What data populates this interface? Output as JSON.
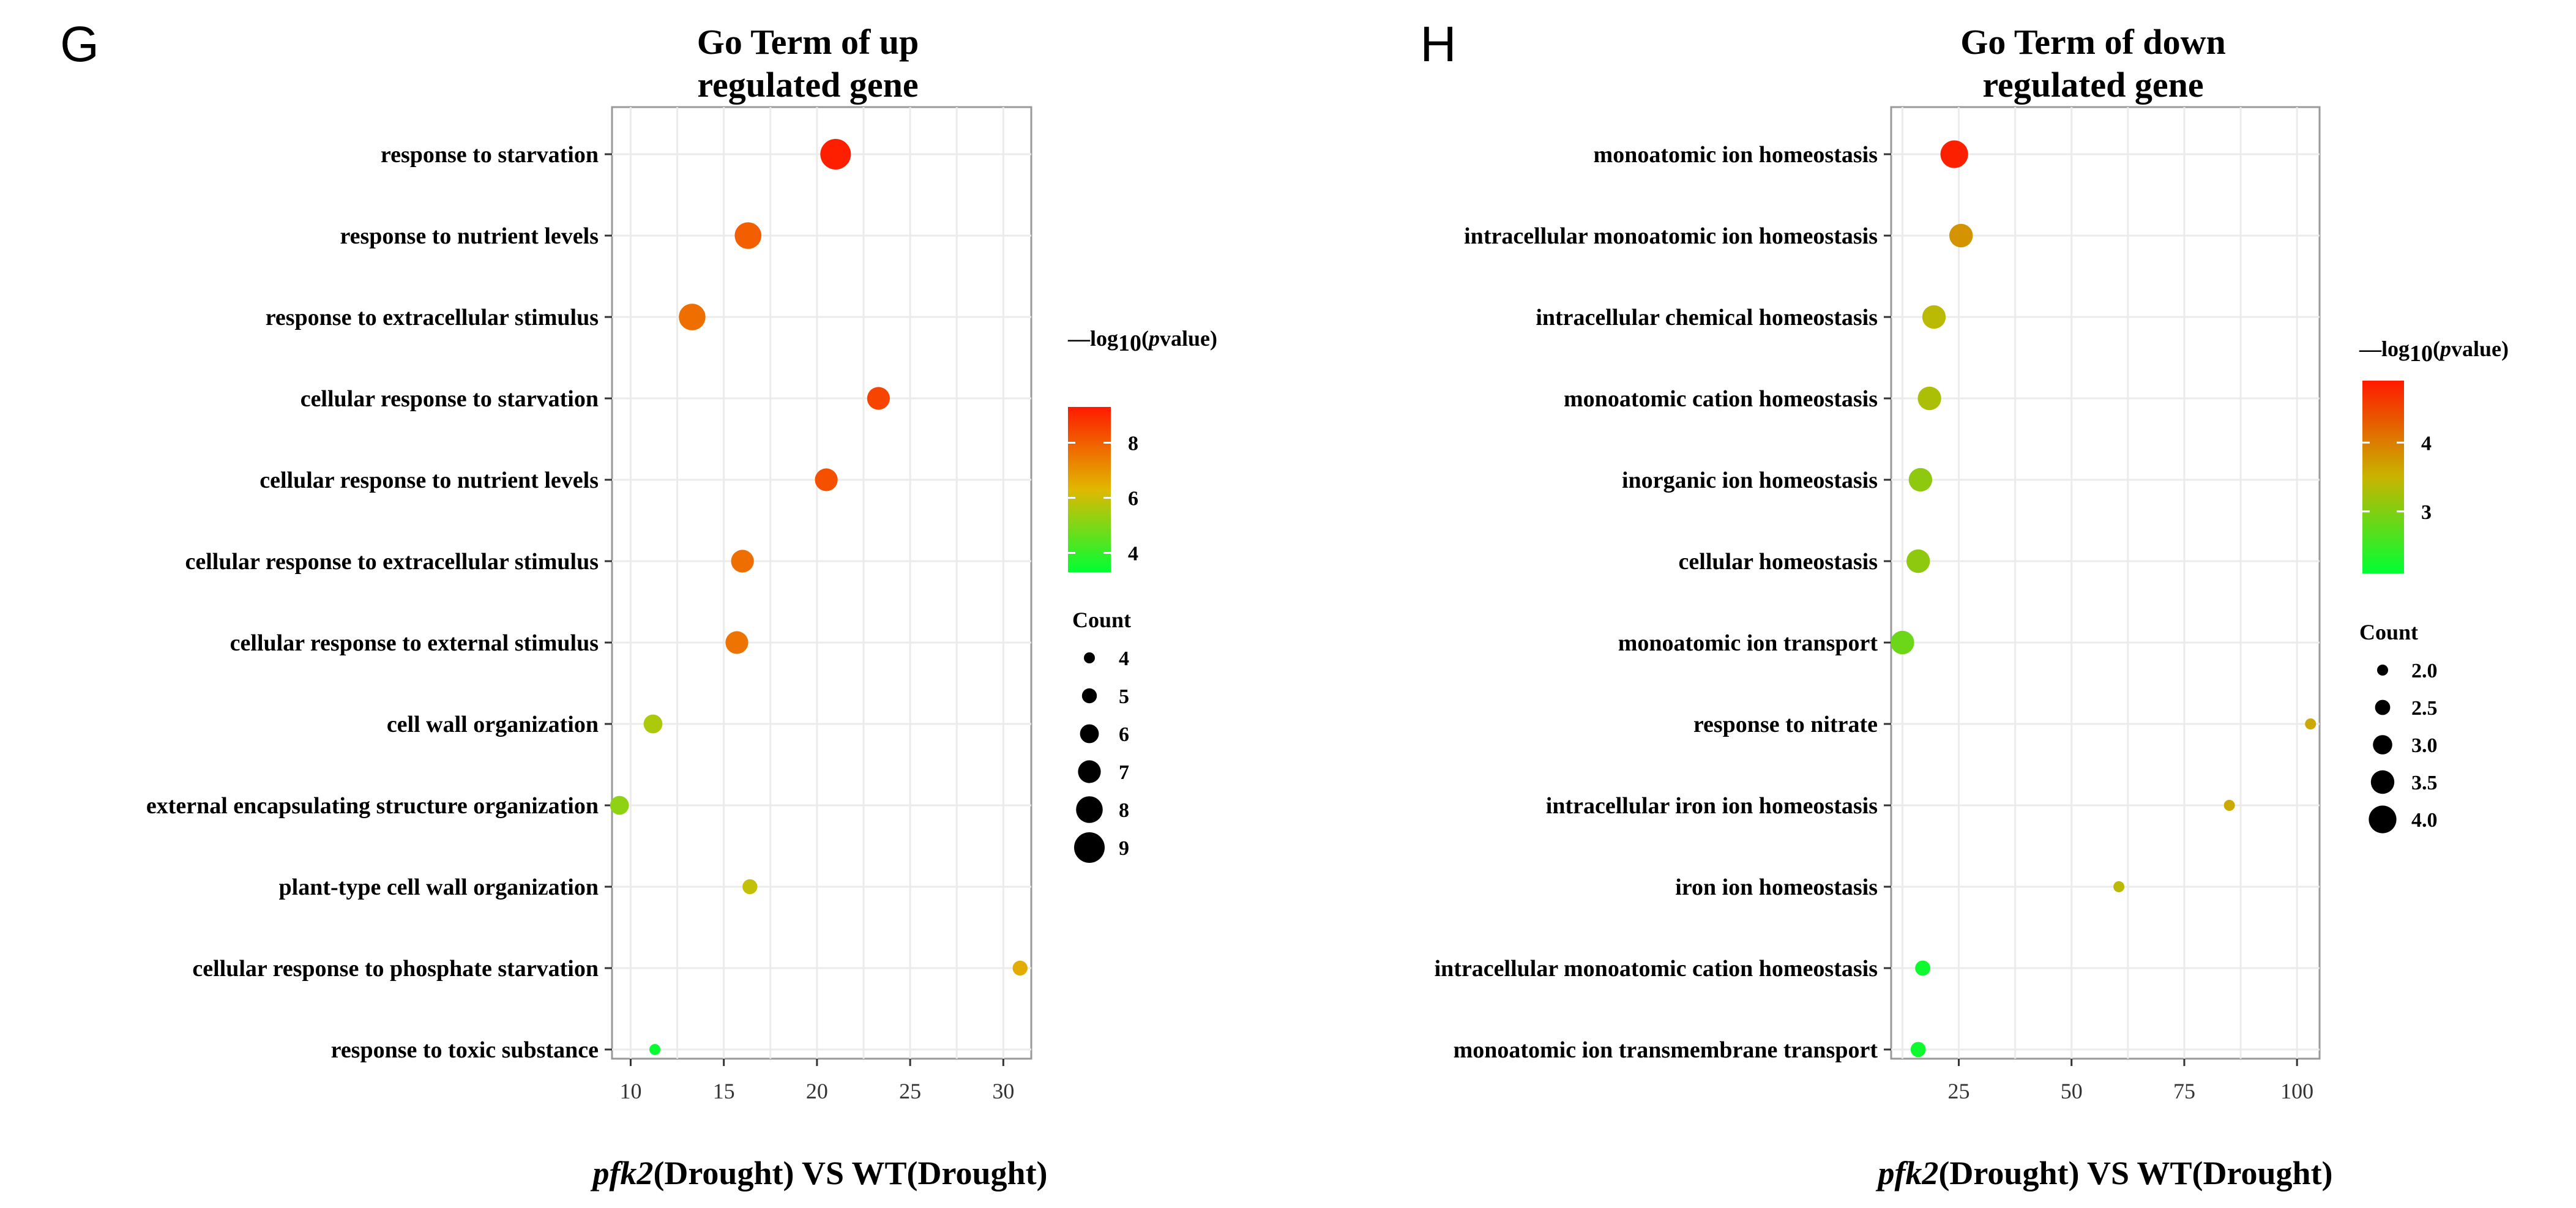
{
  "chart_data": [
    {
      "panel_label": "G",
      "type": "scatter",
      "title_lines": [
        "Go Term of up",
        "regulated gene"
      ],
      "xlabel_italic": "pfk2",
      "xlabel_rest": "(Drought) VS WT(Drought)",
      "ylabel": "",
      "xlim": [
        9,
        31.5
      ],
      "xticks": [
        10,
        15,
        20,
        25,
        30
      ],
      "grid": true,
      "color_scale": {
        "title_prefix": "—log",
        "title_sub": "10",
        "title_open": "(",
        "title_italic": "p",
        "title_rest": "value)",
        "min": 3.3,
        "max": 9.3,
        "ticks": [
          4,
          6,
          8
        ],
        "low_color": "#00ff33",
        "mid_color": "#e0b800",
        "high_color": "#ff1a00"
      },
      "size_scale": {
        "title": "Count",
        "values": [
          4,
          5,
          6,
          7,
          8,
          9
        ]
      },
      "terms": [
        {
          "label": "response to starvation",
          "x": 21.0,
          "count": 9,
          "p": 9.2
        },
        {
          "label": "response to nutrient levels",
          "x": 16.3,
          "count": 8,
          "p": 8.0
        },
        {
          "label": "response to extracellular stimulus",
          "x": 13.3,
          "count": 8,
          "p": 7.7
        },
        {
          "label": "cellular response to starvation",
          "x": 23.3,
          "count": 7,
          "p": 8.5
        },
        {
          "label": "cellular response to nutrient levels",
          "x": 20.5,
          "count": 7,
          "p": 8.3
        },
        {
          "label": "cellular response to extracellular stimulus",
          "x": 16.0,
          "count": 7,
          "p": 7.7
        },
        {
          "label": "cellular response to external stimulus",
          "x": 15.7,
          "count": 7,
          "p": 7.6
        },
        {
          "label": "cell wall organization",
          "x": 11.2,
          "count": 6,
          "p": 5.6
        },
        {
          "label": "external encapsulating structure organization",
          "x": 9.4,
          "count": 6,
          "p": 5.2
        },
        {
          "label": "plant-type cell wall organization",
          "x": 16.4,
          "count": 5,
          "p": 5.9
        },
        {
          "label": "cellular response to phosphate starvation",
          "x": 30.9,
          "count": 5,
          "p": 6.5
        },
        {
          "label": "response to toxic substance",
          "x": 11.3,
          "count": 4,
          "p": 3.4
        }
      ]
    },
    {
      "panel_label": "H",
      "type": "scatter",
      "title_lines": [
        "Go Term of down",
        "regulated gene"
      ],
      "xlabel_italic": "pfk2",
      "xlabel_rest": "(Drought) VS WT(Drought)",
      "ylabel": "",
      "xlim": [
        10,
        105
      ],
      "xticks": [
        25,
        50,
        75,
        100
      ],
      "grid": true,
      "color_scale": {
        "title_prefix": "—log",
        "title_sub": "10",
        "title_open": "(",
        "title_italic": "p",
        "title_rest": "value)",
        "min": 2.1,
        "max": 4.9,
        "ticks": [
          3,
          4
        ],
        "low_color": "#00ff33",
        "mid_color": "#c8b400",
        "high_color": "#ff1a00"
      },
      "size_scale": {
        "title": "Count",
        "values": [
          "2.0",
          "2.5",
          "3.0",
          "3.5",
          "4.0"
        ]
      },
      "terms": [
        {
          "label": "monoatomic ion homeostasis",
          "x": 24.0,
          "count": 4.0,
          "p": 4.85
        },
        {
          "label": "intracellular monoatomic ion homeostasis",
          "x": 25.5,
          "count": 3.5,
          "p": 3.8
        },
        {
          "label": "intracellular chemical homeostasis",
          "x": 19.5,
          "count": 3.5,
          "p": 3.4
        },
        {
          "label": "monoatomic cation homeostasis",
          "x": 18.5,
          "count": 3.5,
          "p": 3.3
        },
        {
          "label": "inorganic ion homeostasis",
          "x": 16.5,
          "count": 3.5,
          "p": 3.1
        },
        {
          "label": "cellular homeostasis",
          "x": 16.0,
          "count": 3.5,
          "p": 3.1
        },
        {
          "label": "monoatomic ion transport",
          "x": 12.5,
          "count": 3.5,
          "p": 2.85
        },
        {
          "label": "response to nitrate",
          "x": 103.0,
          "count": 2.0,
          "p": 3.6
        },
        {
          "label": "intracellular iron ion homeostasis",
          "x": 85.0,
          "count": 2.0,
          "p": 3.6
        },
        {
          "label": "iron ion homeostasis",
          "x": 60.5,
          "count": 2.0,
          "p": 3.4
        },
        {
          "label": "intracellular monoatomic cation homeostasis",
          "x": 17.0,
          "count": 2.5,
          "p": 2.2
        },
        {
          "label": "monoatomic ion transmembrane transport",
          "x": 16.0,
          "count": 2.5,
          "p": 2.2
        }
      ]
    }
  ]
}
